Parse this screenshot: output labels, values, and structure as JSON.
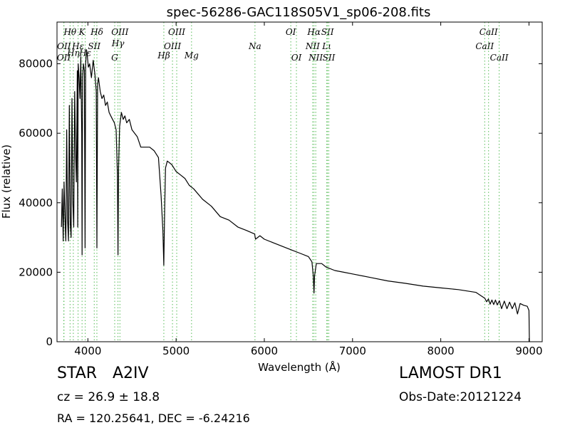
{
  "chart_data": {
    "type": "line",
    "title": "spec-56286-GAC118S05V1_sp06-208.fits",
    "xlabel": "Wavelength (Å)",
    "ylabel": "Flux (relative)",
    "xlim": [
      3650,
      9150
    ],
    "ylim": [
      0,
      92000
    ],
    "xticks": [
      4000,
      5000,
      6000,
      7000,
      8000,
      9000
    ],
    "yticks": [
      0,
      20000,
      40000,
      60000,
      80000
    ],
    "grid": false,
    "series": [
      {
        "x": [
          3700,
          3710,
          3720,
          3730,
          3740,
          3750,
          3760,
          3770,
          3780,
          3790,
          3800,
          3810,
          3820,
          3830,
          3840,
          3850,
          3860,
          3870,
          3880,
          3885,
          3890,
          3900,
          3910,
          3920,
          3930,
          3934,
          3940,
          3950,
          3960,
          3968,
          3975,
          3985,
          3995,
          4005,
          4020,
          4040,
          4060,
          4080,
          4095,
          4102,
          4110,
          4120,
          4140,
          4160,
          4180,
          4200,
          4220,
          4240,
          4260,
          4280,
          4300,
          4320,
          4335,
          4341,
          4348,
          4360,
          4380,
          4400,
          4420,
          4440,
          4470,
          4500,
          4530,
          4560,
          4600,
          4650,
          4700,
          4750,
          4800,
          4830,
          4850,
          4861,
          4870,
          4880,
          4900,
          4950,
          5000,
          5050,
          5100,
          5150,
          5200,
          5300,
          5400,
          5500,
          5600,
          5700,
          5800,
          5890,
          5900,
          5950,
          6000,
          6100,
          6200,
          6300,
          6400,
          6500,
          6540,
          6555,
          6563,
          6570,
          6590,
          6650,
          6700,
          6800,
          6900,
          7000,
          7200,
          7400,
          7600,
          7800,
          8000,
          8200,
          8400,
          8500,
          8520,
          8540,
          8560,
          8580,
          8600,
          8620,
          8640,
          8665,
          8690,
          8720,
          8750,
          8780,
          8810,
          8840,
          8870,
          8900,
          8940,
          8980,
          9000,
          9005
        ],
        "y": [
          33000,
          44000,
          29000,
          46000,
          36000,
          29000,
          61000,
          35000,
          29000,
          68000,
          34000,
          30000,
          70000,
          40000,
          33000,
          72000,
          55000,
          46000,
          78000,
          33000,
          80000,
          76000,
          70000,
          82000,
          60000,
          25000,
          76000,
          80000,
          78000,
          27000,
          80000,
          84000,
          82000,
          79000,
          80000,
          76000,
          81000,
          77000,
          72000,
          27000,
          74000,
          76000,
          72000,
          70000,
          71000,
          68000,
          69000,
          66000,
          65000,
          64000,
          63000,
          61000,
          48000,
          25000,
          50000,
          62000,
          66000,
          64000,
          65000,
          63000,
          64000,
          61000,
          60000,
          59000,
          56000,
          56000,
          56000,
          55000,
          53000,
          42000,
          32000,
          22000,
          38000,
          50000,
          52000,
          51000,
          49000,
          48000,
          47000,
          45000,
          44000,
          41000,
          39000,
          36000,
          35000,
          33000,
          32000,
          31000,
          29500,
          30500,
          29500,
          28500,
          27500,
          26500,
          25500,
          24500,
          23000,
          19000,
          14000,
          19000,
          22500,
          22500,
          21500,
          20500,
          20000,
          19500,
          18500,
          17500,
          16800,
          16000,
          15500,
          15000,
          14200,
          12500,
          11500,
          12300,
          10800,
          12000,
          10700,
          12000,
          10600,
          11800,
          9500,
          11700,
          9500,
          11400,
          9500,
          11200,
          8000,
          11000,
          10500,
          10200,
          9000,
          0
        ]
      }
    ],
    "line_markers": [
      {
        "label": "OII",
        "x": 3727,
        "row": 2
      },
      {
        "label": "OII",
        "x": 3729,
        "row": 1
      },
      {
        "label": "Hθ",
        "x": 3798,
        "row": 0
      },
      {
        "label": "Hη",
        "x": 3835,
        "row": 1.6
      },
      {
        "label": "Hε",
        "x": 3889,
        "row": 1
      },
      {
        "label": "K",
        "x": 3934,
        "row": 0
      },
      {
        "label": "Hε",
        "x": 3970,
        "row": 1.6
      },
      {
        "label": "SII",
        "x": 4072,
        "row": 1
      },
      {
        "label": "Hδ",
        "x": 4102,
        "row": 0
      },
      {
        "label": "G",
        "x": 4304,
        "row": 2
      },
      {
        "label": "Hγ",
        "x": 4341,
        "row": 0.8
      },
      {
        "label": "OIII",
        "x": 4363,
        "row": 0
      },
      {
        "label": "Hβ",
        "x": 4861,
        "row": 1.8
      },
      {
        "label": "OIII",
        "x": 4959,
        "row": 1
      },
      {
        "label": "OIII",
        "x": 5007,
        "row": 0
      },
      {
        "label": "Mg",
        "x": 5175,
        "row": 1.8
      },
      {
        "label": "Na",
        "x": 5894,
        "row": 1
      },
      {
        "label": "OI",
        "x": 6300,
        "row": 0
      },
      {
        "label": "OI",
        "x": 6364,
        "row": 2
      },
      {
        "label": "NII",
        "x": 6548,
        "row": 1
      },
      {
        "label": "Hα",
        "x": 6563,
        "row": 0
      },
      {
        "label": "NII",
        "x": 6583,
        "row": 2
      },
      {
        "label": "Lι",
        "x": 6708,
        "row": 1
      },
      {
        "label": "SII",
        "x": 6716,
        "row": 0
      },
      {
        "label": "SII",
        "x": 6731,
        "row": 2
      },
      {
        "label": "CaII",
        "x": 8498,
        "row": 1
      },
      {
        "label": "CaII",
        "x": 8542,
        "row": 0
      },
      {
        "label": "CaII",
        "x": 8662,
        "row": 2
      }
    ],
    "colors": {
      "spectrum": "#000000",
      "marker_lines": "#55bb55"
    }
  },
  "info": {
    "object_type": "STAR",
    "spec_class": "A2IV",
    "survey": "LAMOST DR1",
    "redshift": "cz = 26.9  ± 18.8",
    "obs_date": "Obs-Date:20121224",
    "radec": "RA = 120.25641, DEC = -6.24216"
  }
}
